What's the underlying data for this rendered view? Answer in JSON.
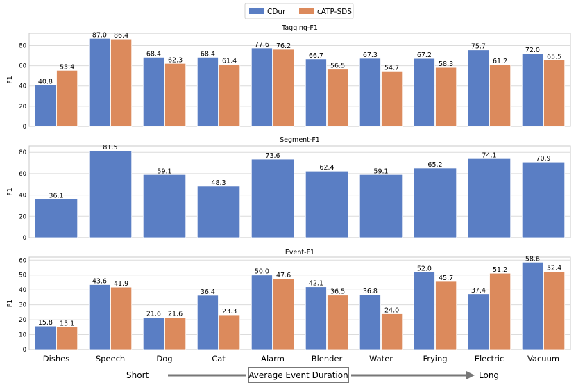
{
  "legend": {
    "items": [
      {
        "name": "CDur",
        "color": "#5a7ec4"
      },
      {
        "name": "cATP-SDS",
        "color": "#dc8a5c"
      }
    ]
  },
  "chart_data": [
    {
      "type": "bar",
      "title": "Tagging-F1",
      "ylabel": "F1",
      "ylim": [
        0,
        92
      ],
      "yticks": [
        0,
        20,
        40,
        60,
        80
      ],
      "categories": [
        "Dishes",
        "Speech",
        "Dog",
        "Cat",
        "Alarm",
        "Blender",
        "Water",
        "Frying",
        "Electric",
        "Vacuum"
      ],
      "series": [
        {
          "name": "CDur",
          "values": [
            40.8,
            87.0,
            68.4,
            68.4,
            77.6,
            66.7,
            67.3,
            67.2,
            75.7,
            72.0
          ]
        },
        {
          "name": "cATP-SDS",
          "values": [
            55.4,
            86.4,
            62.3,
            61.4,
            76.2,
            56.5,
            54.7,
            58.3,
            61.2,
            65.5
          ]
        }
      ]
    },
    {
      "type": "bar",
      "title": "Segment-F1",
      "ylabel": "F1",
      "ylim": [
        0,
        86
      ],
      "yticks": [
        0,
        20,
        40,
        60,
        80
      ],
      "categories": [
        "Dishes",
        "Speech",
        "Dog",
        "Cat",
        "Alarm",
        "Blender",
        "Water",
        "Frying",
        "Electric",
        "Vacuum"
      ],
      "series": [
        {
          "name": "CDur",
          "values": [
            36.1,
            81.5,
            59.1,
            48.3,
            73.6,
            62.4,
            59.1,
            65.2,
            74.1,
            70.9
          ]
        }
      ]
    },
    {
      "type": "bar",
      "title": "Event-F1",
      "ylabel": "F1",
      "ylim": [
        0,
        62
      ],
      "yticks": [
        0,
        10,
        20,
        30,
        40,
        50,
        60
      ],
      "categories": [
        "Dishes",
        "Speech",
        "Dog",
        "Cat",
        "Alarm",
        "Blender",
        "Water",
        "Frying",
        "Electric",
        "Vacuum"
      ],
      "series": [
        {
          "name": "CDur",
          "values": [
            15.8,
            43.6,
            21.6,
            36.4,
            50.0,
            42.1,
            36.8,
            52.0,
            37.4,
            58.6
          ]
        },
        {
          "name": "cATP-SDS",
          "values": [
            15.1,
            41.9,
            21.6,
            23.3,
            47.6,
            36.5,
            24.0,
            45.7,
            51.2,
            52.4
          ]
        }
      ]
    }
  ],
  "duration_axis": {
    "short_label": "Short",
    "center_label": "Average Event Duration",
    "long_label": "Long"
  }
}
